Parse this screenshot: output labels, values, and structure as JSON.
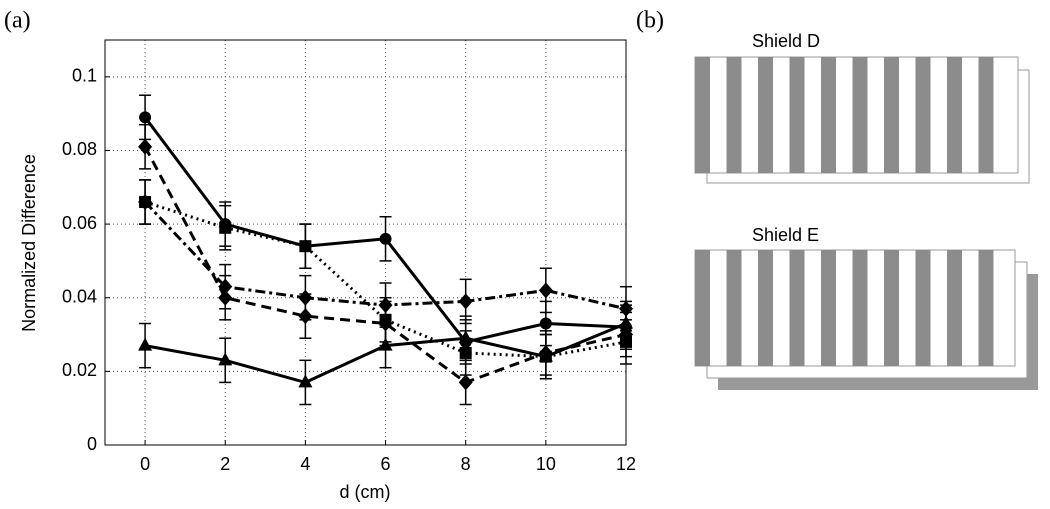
{
  "chart_data": {
    "type": "line",
    "panel_label": "(a)",
    "x_label": "d (cm)",
    "y_label": "Normalized Difference",
    "x": [
      0,
      2,
      4,
      6,
      8,
      10,
      12
    ],
    "xlim": [
      -1,
      12
    ],
    "ylim": [
      0,
      0.11
    ],
    "xticks": [
      0,
      2,
      4,
      6,
      8,
      10,
      12
    ],
    "yticks": [
      0,
      0.02,
      0.04,
      0.06,
      0.08,
      0.1
    ],
    "grid": true,
    "series": [
      {
        "color": "#000000",
        "dash": "solid",
        "marker": "circle",
        "values": [
          0.089,
          0.06,
          0.054,
          0.056,
          0.028,
          0.033,
          0.032
        ],
        "errors": [
          0.006,
          0.006,
          0.006,
          0.006,
          0.006,
          0.006,
          0.006
        ]
      },
      {
        "color": "#000000",
        "dash": "dashed",
        "marker": "diamond",
        "values": [
          0.081,
          0.04,
          0.035,
          0.033,
          0.017,
          0.025,
          0.03
        ],
        "errors": [
          0.006,
          0.006,
          0.006,
          0.006,
          0.006,
          0.006,
          0.006
        ]
      },
      {
        "color": "#000000",
        "dash": "dashdot",
        "marker": "diamond",
        "values": [
          0.066,
          0.043,
          0.04,
          0.038,
          0.039,
          0.042,
          0.037
        ],
        "errors": [
          0.006,
          0.006,
          0.006,
          0.006,
          0.006,
          0.006,
          0.006
        ]
      },
      {
        "color": "#000000",
        "dash": "dotted",
        "marker": "square",
        "values": [
          0.066,
          0.059,
          0.054,
          0.034,
          0.025,
          0.024,
          0.028
        ],
        "errors": [
          0.006,
          0.006,
          0.006,
          0.006,
          0.006,
          0.006,
          0.006
        ]
      },
      {
        "color": "#000000",
        "dash": "solid",
        "marker": "triangle",
        "values": [
          0.027,
          0.023,
          0.017,
          0.027,
          0.029,
          0.024,
          0.033
        ],
        "errors": [
          0.006,
          0.006,
          0.006,
          0.006,
          0.006,
          0.006,
          0.006
        ]
      }
    ]
  },
  "diagram": {
    "panel_label": "(b)",
    "shields": [
      "Shield D",
      "Shield E"
    ]
  }
}
